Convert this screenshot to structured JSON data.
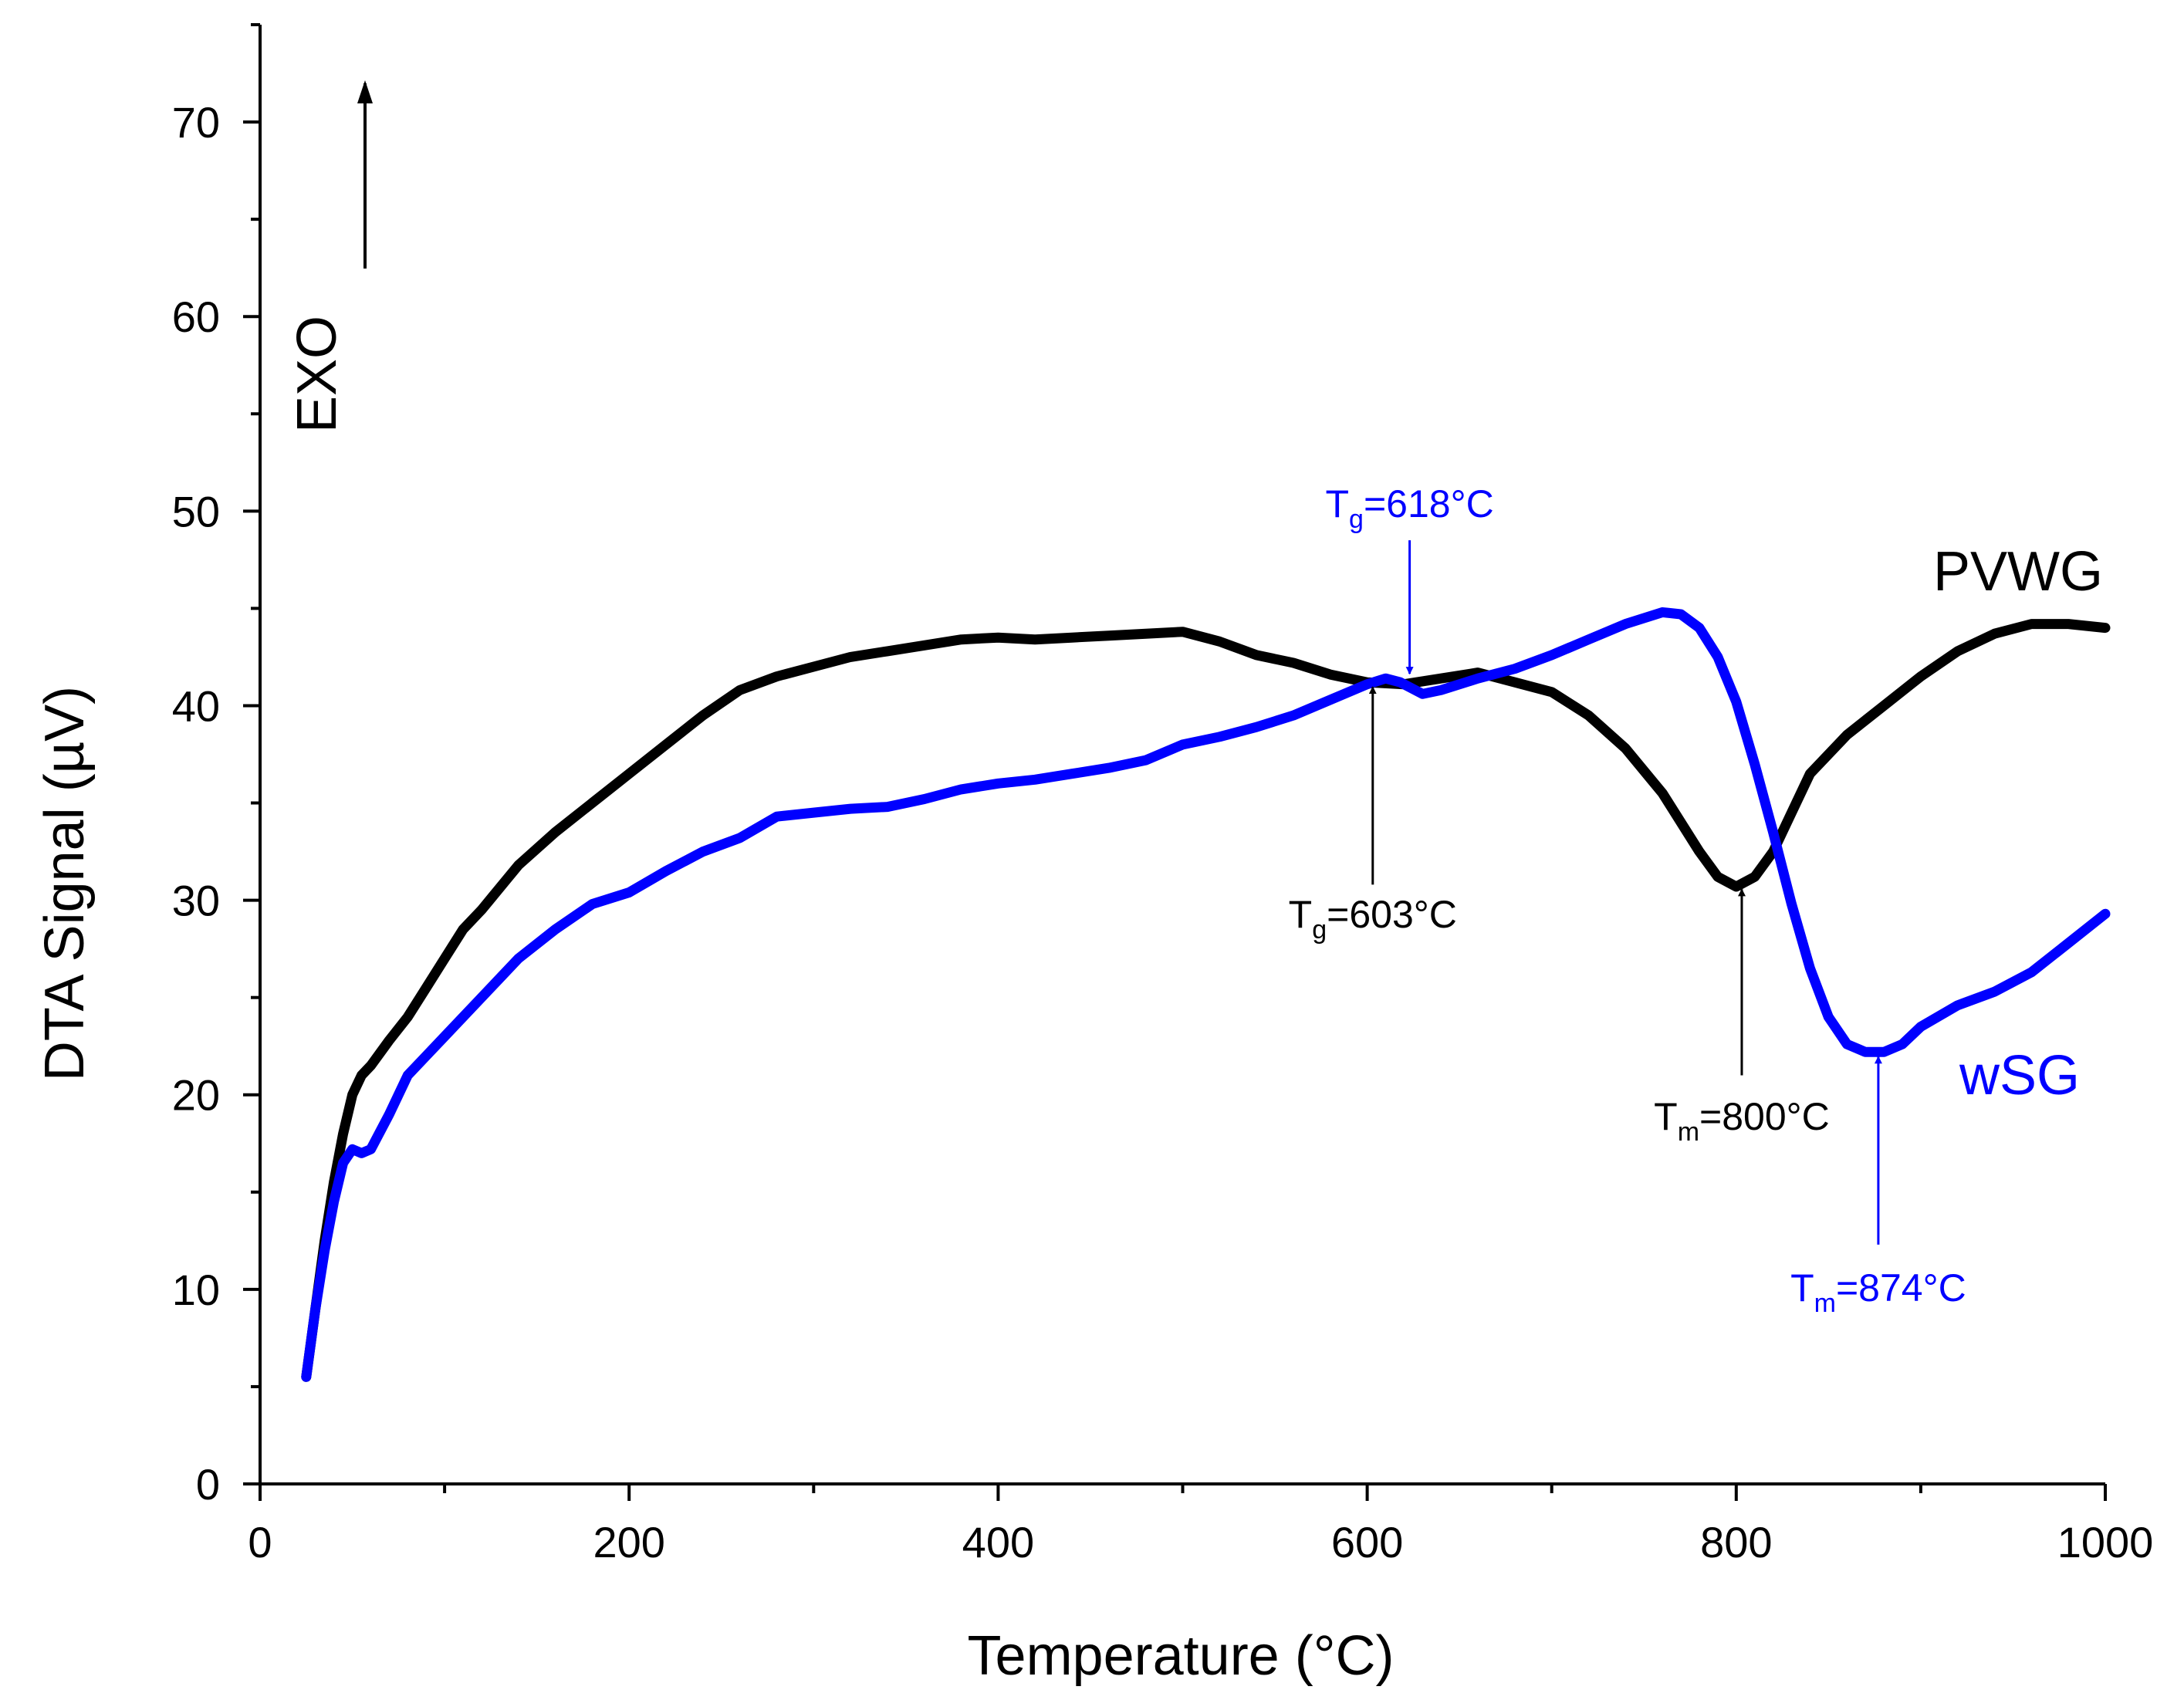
{
  "chart_data": {
    "type": "line",
    "xlabel": "Temperature (°C)",
    "ylabel": "DTA Signal (µV)",
    "xlim": [
      0,
      1000
    ],
    "ylim": [
      0,
      75
    ],
    "x_ticks": [
      0,
      200,
      400,
      600,
      800,
      1000
    ],
    "y_ticks": [
      0,
      10,
      20,
      30,
      40,
      50,
      60,
      70
    ],
    "grid": false,
    "exo_label": "EXO",
    "colors": {
      "PVWG": "#000000",
      "wSG": "#0000ff"
    },
    "series": [
      {
        "name": "PVWG",
        "color": "#000000",
        "x": [
          25,
          30,
          35,
          40,
          45,
          50,
          55,
          60,
          70,
          80,
          90,
          100,
          110,
          120,
          140,
          160,
          180,
          200,
          220,
          240,
          260,
          280,
          300,
          320,
          340,
          360,
          380,
          400,
          420,
          440,
          460,
          480,
          500,
          520,
          540,
          560,
          580,
          600,
          620,
          640,
          660,
          680,
          700,
          720,
          740,
          760,
          780,
          790,
          800,
          810,
          820,
          830,
          840,
          860,
          880,
          900,
          920,
          940,
          960,
          980,
          1000
        ],
        "y": [
          5.5,
          9,
          12.5,
          15.5,
          18,
          20,
          21,
          21.5,
          22.8,
          24,
          25.5,
          27,
          28.5,
          29.5,
          31.8,
          33.5,
          35,
          36.5,
          38,
          39.5,
          40.8,
          41.5,
          42,
          42.5,
          42.8,
          43.1,
          43.4,
          43.5,
          43.4,
          43.5,
          43.6,
          43.7,
          43.8,
          43.3,
          42.6,
          42.2,
          41.6,
          41.2,
          41.1,
          41.4,
          41.7,
          41.2,
          40.7,
          39.5,
          37.8,
          35.5,
          32.5,
          31.2,
          30.7,
          31.2,
          32.5,
          34.5,
          36.5,
          38.5,
          40,
          41.5,
          42.8,
          43.7,
          44.2,
          44.2,
          44
        ]
      },
      {
        "name": "wSG",
        "color": "#0000ff",
        "x": [
          25,
          30,
          35,
          40,
          45,
          50,
          55,
          60,
          70,
          80,
          90,
          100,
          120,
          140,
          160,
          180,
          200,
          220,
          240,
          260,
          280,
          300,
          320,
          340,
          360,
          380,
          400,
          420,
          440,
          460,
          480,
          500,
          520,
          540,
          560,
          580,
          600,
          610,
          618,
          630,
          640,
          660,
          680,
          700,
          720,
          740,
          760,
          770,
          780,
          790,
          800,
          810,
          820,
          830,
          840,
          850,
          860,
          870,
          880,
          890,
          900,
          920,
          940,
          960,
          980,
          1000
        ],
        "y": [
          5.5,
          9,
          12,
          14.5,
          16.5,
          17.2,
          17,
          17.2,
          19,
          21,
          22,
          23,
          25,
          27,
          28.5,
          29.8,
          30.4,
          31.5,
          32.5,
          33.2,
          34.3,
          34.5,
          34.7,
          34.8,
          35.2,
          35.7,
          36,
          36.2,
          36.5,
          36.8,
          37.2,
          38,
          38.4,
          38.9,
          39.5,
          40.3,
          41.1,
          41.4,
          41.2,
          40.6,
          40.8,
          41.4,
          41.9,
          42.6,
          43.4,
          44.2,
          44.8,
          44.7,
          44,
          42.5,
          40.2,
          37,
          33.5,
          29.8,
          26.5,
          24,
          22.6,
          22.2,
          22.2,
          22.6,
          23.5,
          24.6,
          25.3,
          26.3,
          27.8,
          29.3
        ]
      }
    ],
    "series_labels": {
      "PVWG": "PVWG",
      "wSG": "wSG"
    },
    "annotations": [
      {
        "id": "tg-pvwg",
        "main": "T",
        "sub": "g",
        "value": "=603°C",
        "color": "#000000",
        "x": 603,
        "y": 41.2,
        "arrow_from_y": 30.8,
        "text_y": 28.6,
        "dir": "up"
      },
      {
        "id": "tg-wsg",
        "main": "T",
        "sub": "g",
        "value": "=618°C",
        "color": "#0000ff",
        "x": 623,
        "y": 41.4,
        "arrow_from_y": 48.5,
        "text_y": 49.7,
        "dir": "down"
      },
      {
        "id": "tm-pvwg",
        "main": "T",
        "sub": "m",
        "value": "=800°C",
        "color": "#000000",
        "x": 803,
        "y": 30.8,
        "arrow_from_y": 21.0,
        "text_y": 18.2,
        "dir": "up"
      },
      {
        "id": "tm-wsg",
        "main": "T",
        "sub": "m",
        "value": "=874°C",
        "color": "#0000ff",
        "x": 877,
        "y": 22.2,
        "arrow_from_y": 12.3,
        "text_y": 9.4,
        "dir": "up"
      }
    ]
  }
}
